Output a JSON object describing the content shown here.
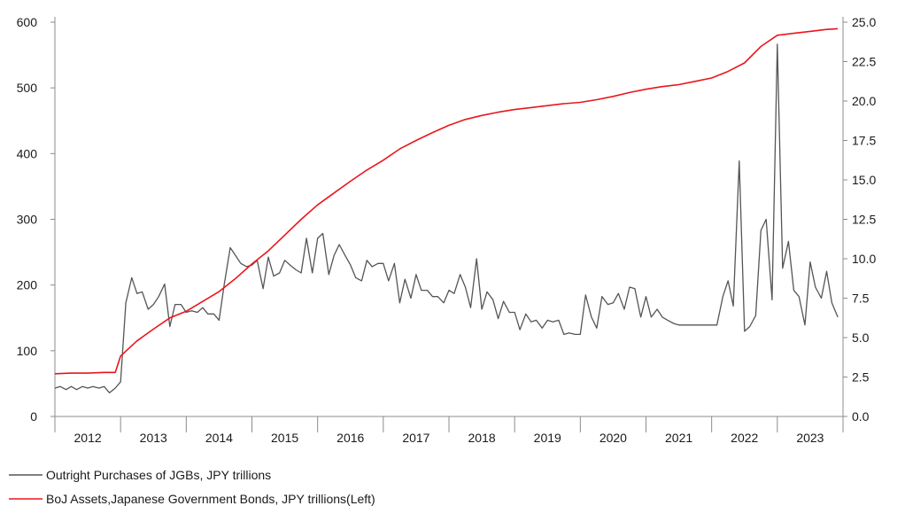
{
  "chart_data": {
    "type": "line",
    "title": "",
    "left_axis": {
      "ylim": [
        0,
        600
      ],
      "ticks": [
        "0",
        "100",
        "200",
        "300",
        "400",
        "500",
        "600"
      ]
    },
    "right_axis": {
      "ylim": [
        0.0,
        25.0
      ],
      "ticks": [
        "0.0",
        "2.5",
        "5.0",
        "7.5",
        "10.0",
        "12.5",
        "15.0",
        "17.5",
        "20.0",
        "22.5",
        "25.0"
      ]
    },
    "x_axis": {
      "range": [
        2012.0,
        2024.0
      ],
      "labels": [
        "2012",
        "2013",
        "2014",
        "2015",
        "2016",
        "2017",
        "2018",
        "2019",
        "2020",
        "2021",
        "2022",
        "2023"
      ]
    },
    "grid": false,
    "legend_position": "bottom-left",
    "colors": {
      "purchases": "#555555",
      "assets": "#e8161c",
      "axis": "#8c8c8c"
    },
    "series": [
      {
        "name": "Outright Purchases of JGBs, JPY trillions",
        "axis": "right",
        "x": [
          2012.0,
          2012.08,
          2012.17,
          2012.25,
          2012.33,
          2012.42,
          2012.5,
          2012.58,
          2012.67,
          2012.75,
          2012.83,
          2012.92,
          2013.0,
          2013.08,
          2013.17,
          2013.25,
          2013.33,
          2013.42,
          2013.5,
          2013.58,
          2013.67,
          2013.75,
          2013.83,
          2013.92,
          2014.0,
          2014.08,
          2014.17,
          2014.25,
          2014.33,
          2014.42,
          2014.5,
          2014.58,
          2014.67,
          2014.75,
          2014.83,
          2014.92,
          2015.0,
          2015.08,
          2015.17,
          2015.25,
          2015.33,
          2015.42,
          2015.5,
          2015.58,
          2015.67,
          2015.75,
          2015.83,
          2015.92,
          2016.0,
          2016.08,
          2016.17,
          2016.25,
          2016.33,
          2016.42,
          2016.5,
          2016.58,
          2016.67,
          2016.75,
          2016.83,
          2016.92,
          2017.0,
          2017.08,
          2017.17,
          2017.25,
          2017.33,
          2017.42,
          2017.5,
          2017.58,
          2017.67,
          2017.75,
          2017.83,
          2017.92,
          2018.0,
          2018.08,
          2018.17,
          2018.25,
          2018.33,
          2018.42,
          2018.5,
          2018.58,
          2018.67,
          2018.75,
          2018.83,
          2018.92,
          2019.0,
          2019.08,
          2019.17,
          2019.25,
          2019.33,
          2019.42,
          2019.5,
          2019.58,
          2019.67,
          2019.75,
          2019.83,
          2019.92,
          2020.0,
          2020.08,
          2020.17,
          2020.25,
          2020.33,
          2020.42,
          2020.5,
          2020.58,
          2020.67,
          2020.75,
          2020.83,
          2020.92,
          2021.0,
          2021.08,
          2021.17,
          2021.25,
          2021.33,
          2021.42,
          2021.5,
          2021.58,
          2021.67,
          2021.75,
          2021.83,
          2021.92,
          2022.0,
          2022.08,
          2022.17,
          2022.25,
          2022.33,
          2022.42,
          2022.5,
          2022.58,
          2022.67,
          2022.75,
          2022.83,
          2022.92,
          2023.0,
          2023.08,
          2023.17,
          2023.25,
          2023.33,
          2023.42,
          2023.5,
          2023.58,
          2023.67,
          2023.75,
          2023.83,
          2023.92
        ],
        "values": [
          1.8,
          1.9,
          1.7,
          1.9,
          1.7,
          1.9,
          1.8,
          1.9,
          1.8,
          1.9,
          1.5,
          1.8,
          2.2,
          7.2,
          8.8,
          7.8,
          7.9,
          6.8,
          7.1,
          7.6,
          8.4,
          5.7,
          7.1,
          7.1,
          6.6,
          6.7,
          6.6,
          6.9,
          6.5,
          6.5,
          6.1,
          8.4,
          10.7,
          10.2,
          9.7,
          9.5,
          9.6,
          9.9,
          8.1,
          10.1,
          8.9,
          9.1,
          9.9,
          9.6,
          9.3,
          9.1,
          11.3,
          9.1,
          11.3,
          11.6,
          9.0,
          10.2,
          10.9,
          10.2,
          9.6,
          8.8,
          8.6,
          9.9,
          9.5,
          9.7,
          9.7,
          8.6,
          9.7,
          7.2,
          8.7,
          7.5,
          9.0,
          8.0,
          8.0,
          7.6,
          7.6,
          7.2,
          8.0,
          7.8,
          9.0,
          8.2,
          6.9,
          10.0,
          6.8,
          7.9,
          7.4,
          6.2,
          7.3,
          6.6,
          6.6,
          5.5,
          6.5,
          6.0,
          6.1,
          5.6,
          6.1,
          6.0,
          6.1,
          5.2,
          5.3,
          5.2,
          5.2,
          7.7,
          6.3,
          5.6,
          7.6,
          7.1,
          7.2,
          7.8,
          6.8,
          8.2,
          8.1,
          6.3,
          7.6,
          6.3,
          6.8,
          6.3,
          6.1,
          5.9,
          5.8,
          5.8,
          5.8,
          5.8,
          5.8,
          5.8,
          5.8,
          5.8,
          7.6,
          8.6,
          7.0,
          16.2,
          5.4,
          5.7,
          6.4,
          11.8,
          12.5,
          7.4,
          23.6,
          9.4,
          11.1,
          8.0,
          7.6,
          5.8,
          9.8,
          8.2,
          7.5,
          9.2,
          7.2,
          6.3
        ]
      },
      {
        "name": "BoJ Assets,Japanese Government Bonds, JPY trillions(Left)",
        "axis": "left",
        "x": [
          2012.0,
          2012.25,
          2012.5,
          2012.75,
          2012.92,
          2013.0,
          2013.25,
          2013.5,
          2013.75,
          2014.0,
          2014.25,
          2014.5,
          2014.75,
          2015.0,
          2015.25,
          2015.5,
          2015.75,
          2016.0,
          2016.25,
          2016.5,
          2016.75,
          2017.0,
          2017.25,
          2017.5,
          2017.75,
          2018.0,
          2018.25,
          2018.5,
          2018.75,
          2019.0,
          2019.25,
          2019.5,
          2019.75,
          2020.0,
          2020.25,
          2020.5,
          2020.75,
          2021.0,
          2021.25,
          2021.5,
          2021.75,
          2022.0,
          2022.25,
          2022.5,
          2022.75,
          2023.0,
          2023.25,
          2023.5,
          2023.75,
          2023.92
        ],
        "values": [
          65,
          66,
          66,
          67,
          67,
          92,
          115,
          133,
          150,
          160,
          175,
          190,
          210,
          232,
          252,
          276,
          300,
          322,
          340,
          358,
          375,
          390,
          407,
          420,
          432,
          443,
          452,
          458,
          463,
          467,
          470,
          473,
          476,
          478,
          482,
          487,
          493,
          498,
          502,
          505,
          510,
          515,
          525,
          538,
          563,
          580,
          583,
          586,
          589,
          590
        ]
      }
    ]
  }
}
